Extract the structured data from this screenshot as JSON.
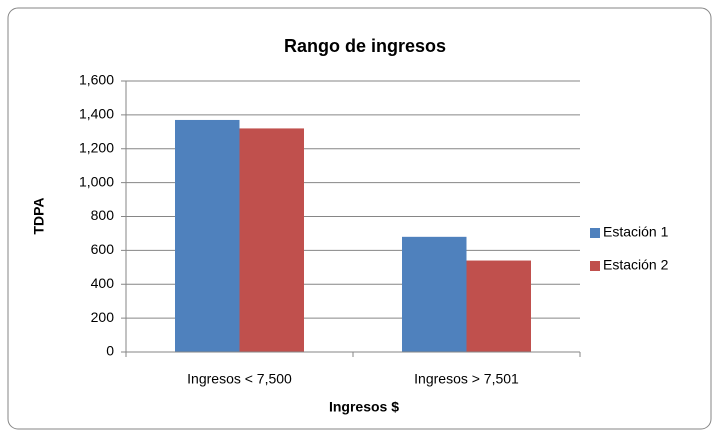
{
  "chart_data": {
    "type": "bar",
    "title": "Rango de ingresos",
    "x_label": "Ingresos $",
    "y_label": "TDPA",
    "categories": [
      "Ingresos < 7,500",
      "Ingresos > 7,501"
    ],
    "series": [
      {
        "name": "Estación 1",
        "color": "#4f81bd",
        "values": [
          1370,
          680
        ]
      },
      {
        "name": "Estación 2",
        "color": "#c0504d",
        "values": [
          1320,
          540
        ]
      }
    ],
    "ylim": [
      0,
      1600
    ],
    "yticks": [
      0,
      200,
      400,
      600,
      800,
      {
        "value": 1000,
        "label": "1,000"
      },
      {
        "value": 1200,
        "label": "1,200"
      },
      {
        "value": 1400,
        "label": "1,400"
      },
      {
        "value": 1600,
        "label": "1,600"
      }
    ],
    "grid": true,
    "legend": "right"
  }
}
